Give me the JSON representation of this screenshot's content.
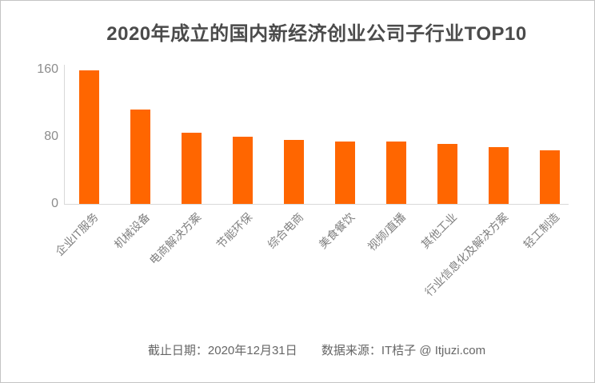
{
  "title": "2020年成立的国内新经济创业公司子行业TOP10",
  "footer": {
    "deadline_label": "截止日期：2020年12月31日",
    "source_label": "数据来源：IT桔子 @ Itjuzi.com"
  },
  "colors": {
    "bar": "#ff6600",
    "title_text": "#4b4b4b",
    "y_tick_text": "#8c8c8c",
    "category_text": "#7f7f7f",
    "footer_text": "#666666",
    "axis_line": "#d9d9d9",
    "background": "#ffffff",
    "border": "#c4c4c4"
  },
  "chart_data": {
    "type": "bar",
    "title": "2020年成立的国内新经济创业公司子行业TOP10",
    "categories": [
      "企业IT服务",
      "机械设备",
      "电商解决方案",
      "节能环保",
      "综合电商",
      "美食餐饮",
      "视频/直播",
      "其他工业",
      "行业信息化及解决方案",
      "轻工制造"
    ],
    "values": [
      159,
      112,
      85,
      80,
      76,
      74,
      74,
      71,
      68,
      64
    ],
    "xlabel": "",
    "ylabel": "",
    "yticks": [
      0,
      80,
      160
    ],
    "ylim": [
      0,
      168
    ],
    "grid": false,
    "legend": false,
    "bar_color": "#ff6600",
    "x_label_rotation": 45,
    "annotations": {
      "deadline": "截止日期：2020年12月31日",
      "source": "数据来源：IT桔子 @ Itjuzi.com"
    }
  }
}
